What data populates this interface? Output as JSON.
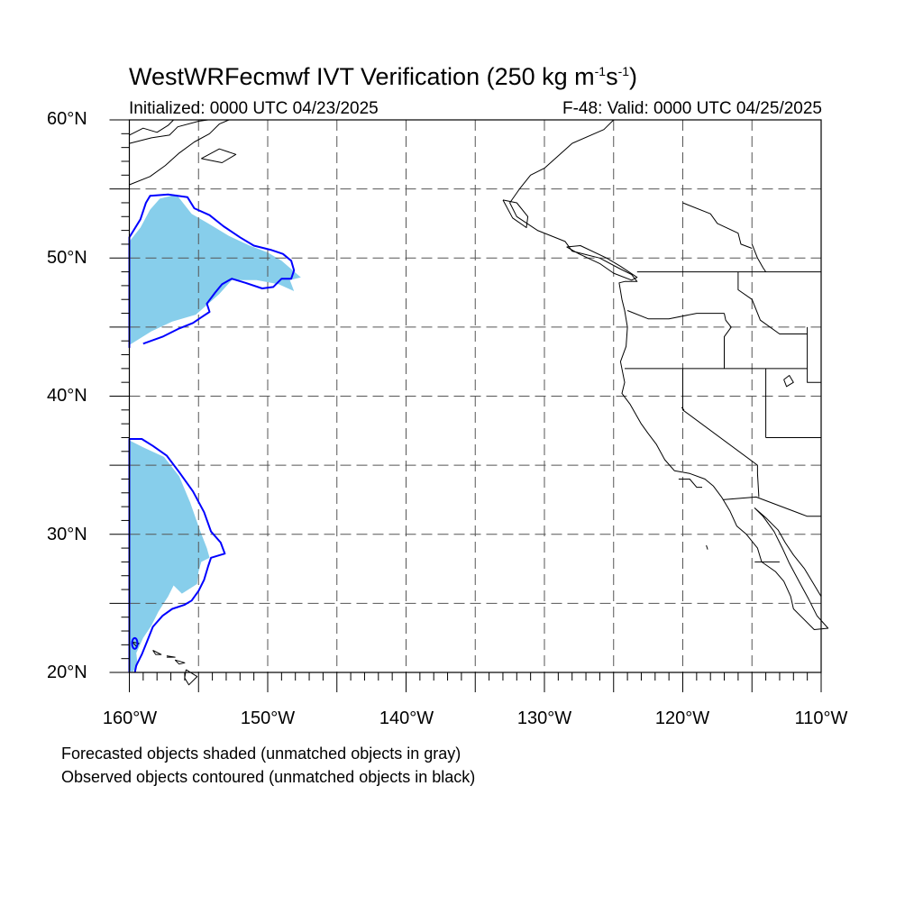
{
  "title": {
    "main": "WestWRFecmwf IVT Verification (250 kg m",
    "exp1": "-1",
    "mid": "s",
    "exp2": "-1",
    "end": ")"
  },
  "init_label": "Initialized: 0000 UTC 04/23/2025",
  "valid_label": "F-48: Valid: 0000 UTC 04/25/2025",
  "lat_labels": [
    "60°N",
    "50°N",
    "40°N",
    "30°N",
    "20°N"
  ],
  "lon_labels": [
    "160°W",
    "150°W",
    "140°W",
    "130°W",
    "120°W",
    "110°W"
  ],
  "notes": [
    "Forecasted objects shaded (unmatched objects in gray)",
    "Observed objects contoured (unmatched objects in black)"
  ],
  "map_extent": {
    "lon_min": -160,
    "lon_max": -110,
    "lat_min": 20,
    "lat_max": 60
  },
  "grid_spacing_deg": 5,
  "colors": {
    "forecast_fill": "#87ceeb",
    "observed_contour": "#0000ff",
    "coastline": "#000000",
    "grid": "#555555"
  },
  "objects": {
    "forecast_north": [
      [
        -160,
        43.7
      ],
      [
        -160,
        51.2
      ],
      [
        -159.2,
        52.2
      ],
      [
        -158.5,
        53.5
      ],
      [
        -157.8,
        54.3
      ],
      [
        -156.6,
        54.6
      ],
      [
        -155.5,
        53.2
      ],
      [
        -154.3,
        52.5
      ],
      [
        -152.8,
        51.6
      ],
      [
        -151.3,
        50.9
      ],
      [
        -150,
        50.4
      ],
      [
        -149,
        49.8
      ],
      [
        -148.3,
        49.2
      ],
      [
        -147.6,
        48.6
      ],
      [
        -148.4,
        48.4
      ],
      [
        -148.1,
        47.6
      ],
      [
        -149.2,
        48.1
      ],
      [
        -150.8,
        48.4
      ],
      [
        -152.6,
        48.4
      ],
      [
        -153.5,
        47.4
      ],
      [
        -154.4,
        46.6
      ],
      [
        -155.2,
        45.9
      ],
      [
        -156.9,
        45.4
      ],
      [
        -158.4,
        44.7
      ]
    ],
    "observed_north": [
      [
        -160,
        43.5
      ],
      [
        -160,
        51.5
      ],
      [
        -159.2,
        52.8
      ],
      [
        -158.8,
        54
      ],
      [
        -158.5,
        54.5
      ],
      [
        -157.2,
        54.6
      ],
      [
        -155.8,
        54.4
      ],
      [
        -155.3,
        53.6
      ],
      [
        -154.2,
        53.1
      ],
      [
        -153.2,
        52.3
      ],
      [
        -152,
        51.5
      ],
      [
        -151,
        50.9
      ],
      [
        -149.8,
        50.6
      ],
      [
        -148.9,
        50.3
      ],
      [
        -148.3,
        49.8
      ],
      [
        -148.1,
        49.1
      ],
      [
        -148.3,
        48.5
      ],
      [
        -149,
        48.5
      ],
      [
        -149.6,
        47.9
      ],
      [
        -150.4,
        47.8
      ],
      [
        -151.6,
        48.2
      ],
      [
        -152.6,
        48.5
      ],
      [
        -153.3,
        48.1
      ],
      [
        -153.8,
        47.5
      ],
      [
        -154.4,
        46.7
      ],
      [
        -154.2,
        46.1
      ],
      [
        -154.8,
        45.7
      ],
      [
        -155.4,
        45.3
      ],
      [
        -156.4,
        44.9
      ],
      [
        -157.6,
        44.3
      ],
      [
        -159,
        43.8
      ]
    ],
    "forecast_south": [
      [
        -160,
        20.2
      ],
      [
        -160,
        36.8
      ],
      [
        -159,
        36.3
      ],
      [
        -157.5,
        35.6
      ],
      [
        -156.4,
        34.2
      ],
      [
        -155.6,
        32.3
      ],
      [
        -154.9,
        30.3
      ],
      [
        -154.4,
        29
      ],
      [
        -154.2,
        28.3
      ],
      [
        -154.8,
        28
      ],
      [
        -155,
        27.3
      ],
      [
        -155.1,
        26.4
      ],
      [
        -156.2,
        25.7
      ],
      [
        -156.8,
        26.3
      ],
      [
        -157.2,
        25.5
      ],
      [
        -157.9,
        24.4
      ],
      [
        -158.4,
        23.4
      ],
      [
        -159,
        22.5
      ],
      [
        -159.5,
        21.4
      ],
      [
        -159.4,
        20.5
      ],
      [
        -159.8,
        20
      ]
    ],
    "observed_south": [
      [
        -160,
        20
      ],
      [
        -160,
        36.9
      ],
      [
        -159.1,
        36.9
      ],
      [
        -158.3,
        36.4
      ],
      [
        -157.3,
        35.7
      ],
      [
        -156.4,
        34.5
      ],
      [
        -155.4,
        33.1
      ],
      [
        -154.6,
        31.6
      ],
      [
        -154.1,
        30.2
      ],
      [
        -153.4,
        29.4
      ],
      [
        -153.1,
        28.6
      ],
      [
        -154.1,
        28.3
      ],
      [
        -154.3,
        27.7
      ],
      [
        -154.6,
        26.7
      ],
      [
        -155,
        25.9
      ],
      [
        -155.5,
        25.2
      ],
      [
        -156,
        24.9
      ],
      [
        -156.9,
        24.6
      ],
      [
        -157.6,
        24.1
      ],
      [
        -158.3,
        23.3
      ],
      [
        -158.7,
        22.3
      ],
      [
        -159.1,
        21.3
      ],
      [
        -159.5,
        20.5
      ],
      [
        -159.6,
        20
      ]
    ]
  },
  "geography": {
    "coastline": [
      [
        -125,
        60
      ],
      [
        -125.7,
        59.3
      ],
      [
        -128,
        58.3
      ],
      [
        -130,
        56.5
      ],
      [
        -131,
        56
      ],
      [
        -131.8,
        55
      ],
      [
        -132.5,
        54
      ],
      [
        -132,
        53
      ],
      [
        -130.5,
        52
      ],
      [
        -128.5,
        51.2
      ],
      [
        -128,
        50.5
      ],
      [
        -126,
        50
      ],
      [
        -124.5,
        49.2
      ],
      [
        -123.7,
        48.8
      ],
      [
        -123.3,
        48.3
      ],
      [
        -124.2,
        48.3
      ],
      [
        -124.6,
        48.2
      ],
      [
        -124.4,
        47
      ],
      [
        -124.2,
        46.2
      ],
      [
        -124,
        45
      ],
      [
        -124.1,
        43.6
      ],
      [
        -124.5,
        42.5
      ],
      [
        -124.2,
        41
      ],
      [
        -124.4,
        40.2
      ],
      [
        -123.8,
        39.4
      ],
      [
        -123,
        38
      ],
      [
        -122.5,
        37.3
      ],
      [
        -121.9,
        36.5
      ],
      [
        -121.3,
        35.4
      ],
      [
        -120.6,
        34.6
      ],
      [
        -119.5,
        34.4
      ],
      [
        -118.4,
        34
      ],
      [
        -117.8,
        33.5
      ],
      [
        -117.2,
        32.7
      ],
      [
        -116.6,
        31.7
      ],
      [
        -116.1,
        30.6
      ],
      [
        -115.4,
        30
      ],
      [
        -114.6,
        29
      ],
      [
        -114.3,
        28
      ],
      [
        -113.3,
        27.3
      ],
      [
        -112.7,
        26.6
      ],
      [
        -112.2,
        25.5
      ],
      [
        -112,
        24.6
      ],
      [
        -110.5,
        23.1
      ],
      [
        -109.5,
        23.2
      ],
      [
        -110.3,
        24.1
      ],
      [
        -110.9,
        25.3
      ],
      [
        -111.6,
        26.6
      ],
      [
        -112.3,
        27.9
      ],
      [
        -112.8,
        29
      ],
      [
        -113.4,
        30.2
      ],
      [
        -114.2,
        31.3
      ],
      [
        -114.8,
        31.9
      ],
      [
        -114,
        31.2
      ],
      [
        -113.1,
        30.3
      ],
      [
        -112.6,
        29.4
      ],
      [
        -112,
        28.5
      ],
      [
        -111.2,
        27.5
      ],
      [
        -110.6,
        26.5
      ],
      [
        -110,
        25.5
      ],
      [
        -110,
        25
      ]
    ],
    "bering_coast": [
      [
        -160,
        58.3
      ],
      [
        -158.4,
        58.7
      ],
      [
        -157.1,
        58.9
      ],
      [
        -156.5,
        59.5
      ],
      [
        -155,
        59.9
      ],
      [
        -154.3,
        60
      ]
    ],
    "vancouver_island": [
      [
        -128.4,
        50.8
      ],
      [
        -127.5,
        50.3
      ],
      [
        -126,
        49.6
      ],
      [
        -125,
        48.9
      ],
      [
        -123.7,
        48.4
      ],
      [
        -123.3,
        48.6
      ],
      [
        -124.5,
        49.4
      ],
      [
        -125.5,
        50
      ],
      [
        -127.4,
        50.9
      ],
      [
        -128.4,
        50.8
      ]
    ],
    "haida_gwaii": [
      [
        -133,
        54.2
      ],
      [
        -132,
        54
      ],
      [
        -131.2,
        53
      ],
      [
        -131.3,
        52.2
      ],
      [
        -132.3,
        52.9
      ],
      [
        -133,
        54.2
      ]
    ],
    "alaska_peninsula": [
      [
        -160,
        55.3
      ],
      [
        -158.5,
        55.9
      ],
      [
        -157.4,
        56.7
      ],
      [
        -156.4,
        57.6
      ],
      [
        -155.3,
        58.4
      ],
      [
        -154.2,
        59
      ],
      [
        -153.5,
        59.7
      ],
      [
        -152.8,
        60
      ]
    ],
    "kodiak": [
      [
        -154.8,
        57.2
      ],
      [
        -153.5,
        57.9
      ],
      [
        -152.3,
        57.5
      ],
      [
        -153.3,
        56.9
      ],
      [
        -154.8,
        57.2
      ]
    ],
    "baffin_ish_coast": [
      [
        -160,
        58.9
      ],
      [
        -159,
        59.4
      ],
      [
        -158,
        59.1
      ],
      [
        -157.2,
        59.6
      ],
      [
        -156.8,
        60
      ]
    ],
    "hawaii_islands": [
      [
        [
          -155.9,
          20.2
        ],
        [
          -155.1,
          19.7
        ],
        [
          -155.7,
          19.1
        ],
        [
          -156,
          19.6
        ],
        [
          -155.9,
          20.2
        ]
      ],
      [
        [
          -156.7,
          20.9
        ],
        [
          -156,
          20.7
        ],
        [
          -156.4,
          20.6
        ],
        [
          -156.7,
          20.9
        ]
      ],
      [
        [
          -158.3,
          21.6
        ],
        [
          -157.7,
          21.3
        ],
        [
          -158.1,
          21.3
        ],
        [
          -158.3,
          21.6
        ]
      ],
      [
        [
          -159.8,
          22.2
        ],
        [
          -159.3,
          22.1
        ],
        [
          -159.5,
          21.9
        ],
        [
          -159.8,
          22.2
        ]
      ],
      [
        [
          -157.3,
          21.2
        ],
        [
          -156.7,
          21.1
        ],
        [
          -157.3,
          21.1
        ]
      ]
    ],
    "border_canada_us": [
      [
        -123.3,
        49
      ],
      [
        -110,
        49
      ]
    ],
    "wa_or": [
      [
        -124,
        46.2
      ],
      [
        -122.5,
        45.6
      ],
      [
        -121,
        45.6
      ],
      [
        -119,
        46
      ],
      [
        -117,
        46
      ]
    ],
    "or_id": [
      [
        -117,
        46
      ],
      [
        -116.9,
        45.5
      ],
      [
        -116.5,
        45
      ],
      [
        -117,
        44.3
      ],
      [
        -117,
        42
      ]
    ],
    "id_mt": [
      [
        -116,
        49
      ],
      [
        -116,
        47.7
      ],
      [
        -115,
        47
      ],
      [
        -114.4,
        45.5
      ],
      [
        -113,
        44.5
      ],
      [
        -112,
        44.5
      ],
      [
        -111,
        44.5
      ]
    ],
    "n_border42": [
      [
        -124.2,
        42
      ],
      [
        -111,
        42
      ]
    ],
    "ca_nv": [
      [
        -120,
        42
      ],
      [
        -120,
        39
      ],
      [
        -114.6,
        35
      ],
      [
        -114.6,
        34.4
      ],
      [
        -114.5,
        32.7
      ]
    ],
    "nv_ut": [
      [
        -114,
        42
      ],
      [
        -114,
        37
      ]
    ],
    "az_ut": [
      [
        -114,
        37
      ],
      [
        -110,
        37
      ]
    ],
    "wy_id": [
      [
        -111,
        45
      ],
      [
        -111,
        41
      ],
      [
        -110,
        41
      ]
    ],
    "us_mexico": [
      [
        -117.1,
        32.5
      ],
      [
        -114.7,
        32.7
      ],
      [
        -111,
        31.3
      ],
      [
        -110,
        31.3
      ]
    ],
    "baja_border": [
      [
        -114.8,
        28
      ],
      [
        -113,
        28
      ]
    ],
    "salt_lake": [
      [
        -112.7,
        41.2
      ],
      [
        -112.3,
        41.5
      ],
      [
        -112,
        41
      ],
      [
        -112.5,
        40.7
      ],
      [
        -112.7,
        41.2
      ]
    ],
    "lake_tahoe": [
      [
        -120.1,
        39.2
      ],
      [
        -119.9,
        39
      ]
    ],
    "channel_islands": [
      [
        -120.3,
        34
      ],
      [
        -119.5,
        34
      ],
      [
        -119,
        33.4
      ],
      [
        -118.6,
        33.4
      ]
    ],
    "guadalupe": [
      [
        -118.3,
        29.2
      ],
      [
        -118.2,
        28.9
      ]
    ],
    "bc_inland": [
      [
        -120,
        54
      ],
      [
        -118,
        53.2
      ],
      [
        -117.5,
        52.5
      ],
      [
        -116,
        51.8
      ],
      [
        -115.8,
        51
      ],
      [
        -115,
        50.7
      ]
    ],
    "bc_inland2": [
      [
        -115,
        51
      ],
      [
        -114.6,
        50
      ],
      [
        -114.2,
        49.3
      ],
      [
        -114,
        49
      ]
    ]
  }
}
